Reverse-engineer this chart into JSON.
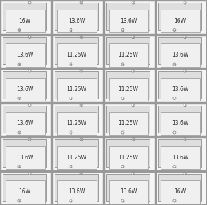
{
  "rows": 6,
  "cols": 4,
  "grid_labels": [
    [
      "16W",
      "13.6W",
      "13.6W",
      "16W"
    ],
    [
      "13.6W",
      "11.25W",
      "11.25W",
      "13.6W"
    ],
    [
      "13.6W",
      "11.25W",
      "11.25W",
      "13.6W"
    ],
    [
      "13.6W",
      "11.25W",
      "11.25W",
      "13.6W"
    ],
    [
      "13.6W",
      "11.25W",
      "11.25W",
      "13.6W"
    ],
    [
      "16W",
      "13.6W",
      "13.6W",
      "16W"
    ]
  ],
  "bg_color": "#e8e8e8",
  "cell_bg": "#f5f5f5",
  "outer_rect_color": "#999999",
  "inner_rect_color": "#aaaaaa",
  "connector_color": "#888888",
  "text_color": "#333333",
  "font_size": 5.5,
  "fig_w": 300,
  "fig_h": 297
}
